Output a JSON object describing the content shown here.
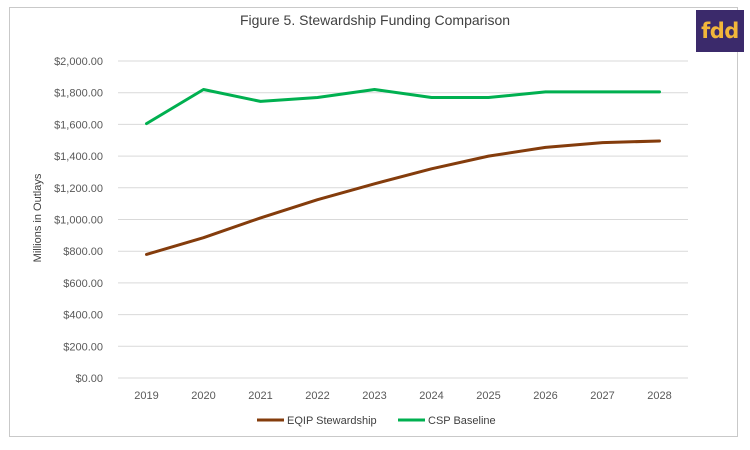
{
  "logo": {
    "text": "fdd"
  },
  "chart_data": {
    "type": "line",
    "title": "Figure 5. Stewardship Funding Comparison",
    "xlabel": "",
    "ylabel": "Millions in Outlays",
    "x": [
      "2019",
      "2020",
      "2021",
      "2022",
      "2023",
      "2024",
      "2025",
      "2026",
      "2027",
      "2028"
    ],
    "ylim": [
      0,
      2000
    ],
    "yticks": [
      0,
      200,
      400,
      600,
      800,
      1000,
      1200,
      1400,
      1600,
      1800,
      2000
    ],
    "ytick_labels": [
      "$0.00",
      "$200.00",
      "$400.00",
      "$600.00",
      "$800.00",
      "$1,000.00",
      "$1,200.00",
      "$1,400.00",
      "$1,600.00",
      "$1,800.00",
      "$2,000.00"
    ],
    "grid": true,
    "legend_position": "bottom",
    "series": [
      {
        "name": "EQIP Stewardship",
        "color": "#843c0c",
        "values": [
          780,
          885,
          1010,
          1125,
          1225,
          1320,
          1400,
          1455,
          1485,
          1495
        ]
      },
      {
        "name": "CSP Baseline",
        "color": "#00b050",
        "values": [
          1605,
          1820,
          1745,
          1770,
          1820,
          1770,
          1770,
          1805,
          1805,
          1805
        ]
      }
    ]
  }
}
